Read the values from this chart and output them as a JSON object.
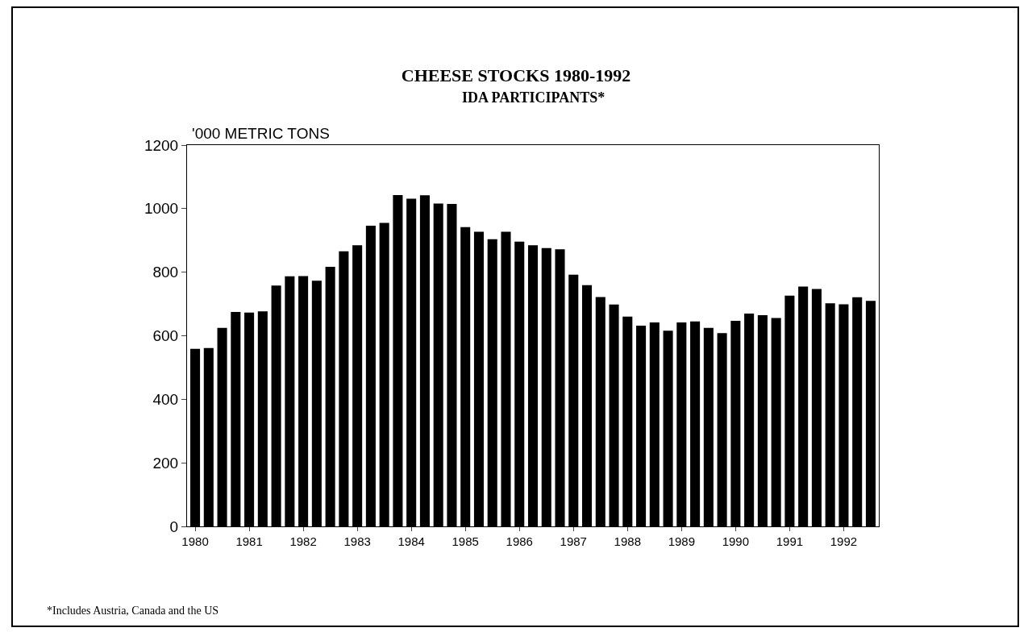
{
  "chart_data": {
    "type": "bar",
    "title": "CHEESE STOCKS 1980-1992",
    "subtitle": "IDA PARTICIPANTS*",
    "ylabel": "'000 METRIC TONS",
    "categories": [
      "1980",
      null,
      null,
      null,
      "1981",
      null,
      null,
      null,
      "1982",
      null,
      null,
      null,
      "1983",
      null,
      null,
      null,
      "1984",
      null,
      null,
      null,
      "1985",
      null,
      null,
      null,
      "1986",
      null,
      null,
      null,
      "1987",
      null,
      null,
      null,
      "1988",
      null,
      null,
      null,
      "1989",
      null,
      null,
      null,
      "1990",
      null,
      null,
      null,
      "1991",
      null,
      null,
      null,
      "1992",
      null,
      null
    ],
    "values": [
      559,
      561,
      625,
      675,
      673,
      677,
      758,
      787,
      788,
      773,
      817,
      866,
      885,
      946,
      955,
      1043,
      1031,
      1042,
      1016,
      1015,
      942,
      927,
      904,
      927,
      896,
      885,
      876,
      872,
      792,
      759,
      722,
      698,
      660,
      632,
      642,
      616,
      642,
      645,
      625,
      608,
      647,
      670,
      665,
      656,
      726,
      755,
      747,
      702,
      699,
      721,
      710
    ],
    "color": "#000000",
    "ylim": [
      0,
      1200
    ],
    "yticks": [
      0,
      200,
      400,
      600,
      800,
      1000,
      1200
    ],
    "grid": false,
    "annotations": [
      "*Includes Austria, Canada and the US"
    ]
  }
}
